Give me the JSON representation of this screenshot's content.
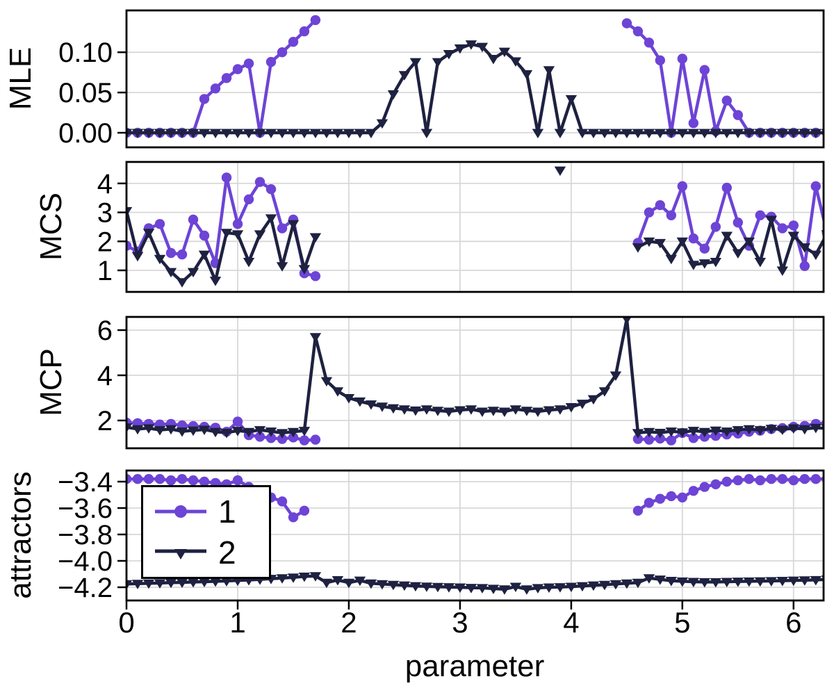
{
  "chart_data": {
    "type": "line",
    "title": "",
    "xlabel": "parameter",
    "x_start": 0,
    "x_step": 0.1,
    "xlim": [
      0,
      6.27
    ],
    "xticks": [
      0,
      1,
      2,
      3,
      4,
      5,
      6
    ],
    "xtick_labels": [
      "0",
      "1",
      "2",
      "3",
      "4",
      "5",
      "6"
    ],
    "grid": true,
    "grid_color": "#d8d8d8",
    "colors": {
      "series1": "#6d44d6",
      "series2": "#1e2140"
    },
    "legend": {
      "position": "upper-left-of-bottom-panel",
      "entries": [
        {
          "label": "1",
          "marker": "circle",
          "color": "#6d44d6"
        },
        {
          "label": "2",
          "marker": "triangle-down",
          "color": "#1e2140"
        }
      ]
    },
    "panels": [
      {
        "id": "mle",
        "ylabel": "MLE",
        "yticks": [
          0.0,
          0.05,
          0.1
        ],
        "ytick_labels": [
          "0.00",
          "0.05",
          "0.10"
        ],
        "ylim": [
          -0.0181,
          0.152
        ],
        "vertical_grid": false,
        "series1": [
          0,
          0,
          0,
          0,
          0,
          0,
          0,
          0.042,
          0.055,
          0.068,
          0.079,
          0.086,
          0,
          0.088,
          0.1,
          0.113,
          0.126,
          0.14,
          null,
          null,
          null,
          null,
          null,
          null,
          null,
          null,
          null,
          null,
          null,
          null,
          null,
          null,
          null,
          null,
          null,
          null,
          null,
          null,
          null,
          null,
          null,
          null,
          null,
          null,
          null,
          0.136,
          0.126,
          0.112,
          0.09,
          0,
          0.092,
          0.012,
          0.078,
          0.002,
          0.04,
          0.022,
          0,
          0,
          0,
          0,
          0,
          0,
          0,
          0
        ],
        "series2": [
          0,
          0,
          0,
          0,
          0,
          0,
          0,
          0,
          0,
          0,
          0,
          0,
          0,
          0,
          0,
          0,
          0,
          0,
          0,
          0,
          0,
          0,
          0,
          0.012,
          0.048,
          0.072,
          0.088,
          0,
          0.088,
          0.098,
          0.105,
          0.11,
          0.107,
          0.092,
          0.101,
          0.089,
          0.073,
          0,
          0.078,
          0,
          0.042,
          0,
          0,
          0,
          0,
          0,
          0,
          0,
          0,
          0,
          0,
          0,
          0,
          0,
          0,
          0,
          0,
          0,
          0,
          0,
          0,
          0,
          0,
          0
        ]
      },
      {
        "id": "mcs",
        "ylabel": "MCS",
        "yticks": [
          1,
          2,
          3,
          4
        ],
        "ytick_labels": [
          "1",
          "2",
          "3",
          "4"
        ],
        "ylim": [
          0.257,
          4.74
        ],
        "vertical_grid": true,
        "series1": [
          1.85,
          1.65,
          2.45,
          2.6,
          1.6,
          1.55,
          2.75,
          2.2,
          1.25,
          4.2,
          2.6,
          3.45,
          4.05,
          3.8,
          2.45,
          2.75,
          0.9,
          0.8,
          null,
          null,
          null,
          null,
          null,
          null,
          null,
          null,
          null,
          null,
          null,
          null,
          null,
          null,
          null,
          null,
          null,
          null,
          null,
          null,
          null,
          null,
          null,
          null,
          null,
          null,
          null,
          null,
          1.95,
          3.0,
          3.25,
          2.9,
          3.9,
          2.1,
          1.75,
          2.5,
          3.85,
          2.65,
          1.85,
          2.9,
          2.85,
          2.45,
          2.55,
          1.15,
          3.9,
          2.3
        ],
        "series2": [
          3.05,
          1.5,
          2.3,
          1.4,
          0.95,
          0.6,
          0.95,
          1.55,
          0.65,
          2.3,
          2.25,
          1.3,
          2.25,
          2.8,
          1.15,
          2.6,
          1.05,
          2.15,
          null,
          null,
          null,
          null,
          null,
          null,
          null,
          null,
          null,
          null,
          null,
          null,
          null,
          null,
          null,
          null,
          null,
          null,
          null,
          null,
          null,
          4.45,
          null,
          null,
          null,
          null,
          null,
          null,
          1.8,
          2.0,
          1.95,
          1.4,
          2.0,
          1.2,
          1.25,
          1.3,
          2.2,
          1.6,
          2.0,
          1.3,
          2.75,
          1.0,
          2.2,
          1.8,
          1.55,
          2.25
        ]
      },
      {
        "id": "mcp",
        "ylabel": "MCP",
        "yticks": [
          2,
          4,
          6
        ],
        "ytick_labels": [
          "2",
          "4",
          "6"
        ],
        "ylim": [
          0.769,
          6.585
        ],
        "vertical_grid": true,
        "series1": [
          1.9,
          1.88,
          1.85,
          1.82,
          1.85,
          1.78,
          1.75,
          1.72,
          1.68,
          1.5,
          1.95,
          1.35,
          1.28,
          1.22,
          1.18,
          1.25,
          1.12,
          1.15,
          null,
          null,
          null,
          null,
          null,
          null,
          null,
          null,
          null,
          null,
          null,
          null,
          null,
          null,
          null,
          null,
          null,
          null,
          null,
          null,
          null,
          null,
          null,
          null,
          null,
          null,
          null,
          null,
          1.18,
          1.15,
          1.2,
          1.12,
          1.45,
          1.22,
          1.28,
          1.32,
          1.38,
          1.42,
          1.5,
          1.55,
          1.62,
          1.66,
          1.72,
          1.76,
          1.85,
          1.9
        ],
        "series2": [
          1.7,
          1.62,
          1.66,
          1.58,
          1.62,
          1.52,
          1.56,
          1.6,
          1.5,
          1.46,
          1.55,
          1.5,
          1.58,
          1.52,
          1.45,
          1.5,
          1.55,
          5.7,
          3.75,
          3.3,
          3.0,
          2.85,
          2.72,
          2.62,
          2.55,
          2.5,
          2.45,
          2.5,
          2.44,
          2.4,
          2.46,
          2.5,
          2.4,
          2.44,
          2.4,
          2.5,
          2.44,
          2.4,
          2.46,
          2.5,
          2.6,
          2.75,
          2.95,
          3.3,
          4.0,
          6.5,
          1.45,
          1.5,
          1.46,
          1.52,
          1.48,
          1.55,
          1.5,
          1.56,
          1.52,
          1.58,
          1.62,
          1.58,
          1.64,
          1.6,
          1.66,
          1.62,
          1.68,
          1.65
        ]
      },
      {
        "id": "attractors",
        "ylabel": "attractors",
        "yticks": [
          -3.4,
          -3.6,
          -3.8,
          -4.0,
          -4.2
        ],
        "ytick_labels": [
          "−3.4",
          "−3.6",
          "−3.8",
          "−4.0",
          "−4.2"
        ],
        "ylim": [
          -4.3,
          -3.316
        ],
        "vertical_grid": true,
        "series1": [
          -3.38,
          -3.38,
          -3.38,
          -3.38,
          -3.39,
          -3.38,
          -3.39,
          -3.4,
          -3.41,
          -3.42,
          -3.39,
          -3.44,
          -3.49,
          -3.52,
          -3.55,
          -3.67,
          -3.62,
          null,
          null,
          null,
          null,
          null,
          null,
          null,
          null,
          null,
          null,
          null,
          null,
          null,
          null,
          null,
          null,
          null,
          null,
          null,
          null,
          null,
          null,
          null,
          null,
          null,
          null,
          null,
          null,
          null,
          -3.62,
          -3.56,
          -3.53,
          -3.51,
          -3.52,
          -3.47,
          -3.44,
          -3.42,
          -3.4,
          -3.39,
          -3.38,
          -3.39,
          -3.38,
          -3.38,
          -3.39,
          -3.38,
          -3.38,
          -3.38
        ],
        "series2": [
          -4.175,
          -4.172,
          -4.17,
          -4.168,
          -4.165,
          -4.163,
          -4.16,
          -4.158,
          -4.155,
          -4.152,
          -4.148,
          -4.145,
          -4.14,
          -4.135,
          -4.13,
          -4.125,
          -4.118,
          -4.115,
          -4.165,
          -4.145,
          -4.165,
          -4.148,
          -4.17,
          -4.175,
          -4.18,
          -4.185,
          -4.19,
          -4.193,
          -4.196,
          -4.198,
          -4.2,
          -4.203,
          -4.205,
          -4.21,
          -4.215,
          -4.195,
          -4.215,
          -4.205,
          -4.2,
          -4.198,
          -4.195,
          -4.19,
          -4.185,
          -4.18,
          -4.175,
          -4.17,
          -4.165,
          -4.13,
          -4.14,
          -4.15,
          -4.155,
          -4.158,
          -4.16,
          -4.16,
          -4.158,
          -4.156,
          -4.155,
          -4.153,
          -4.152,
          -4.15,
          -4.148,
          -4.146,
          -4.144,
          -4.14
        ]
      }
    ]
  }
}
